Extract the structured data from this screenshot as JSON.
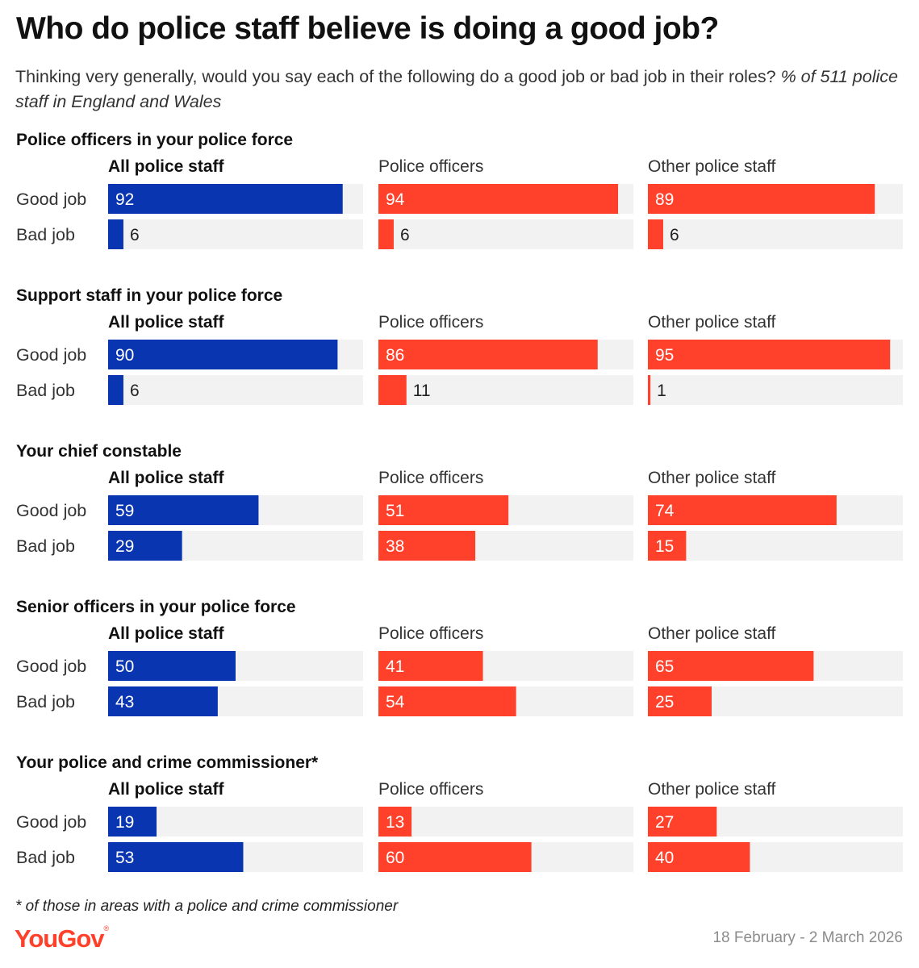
{
  "title": "Who do police staff believe is doing a good job?",
  "subtitle_main": "Thinking very generally, would you say each of the following do a good job or bad job in their roles?",
  "subtitle_italic": " % of 511 police staff in England and Wales",
  "footnote": "* of those in areas with a police and crime commissioner",
  "logo": {
    "text": "YouGov",
    "mark": "®"
  },
  "dates": "18 February - 2 March 2026",
  "colors": {
    "all_staff": "#0a35b0",
    "subgroup": "#ff412c",
    "track": "#f2f2f2"
  },
  "chart_data": {
    "type": "bar",
    "orientation": "horizontal",
    "xlim": [
      0,
      100
    ],
    "unit": "%",
    "columns": [
      "All police staff",
      "Police officers",
      "Other police staff"
    ],
    "rows": [
      "Good job",
      "Bad job"
    ],
    "groups": [
      {
        "name": "Police officers in your police force",
        "values": [
          [
            92,
            6
          ],
          [
            94,
            6
          ],
          [
            89,
            6
          ]
        ]
      },
      {
        "name": "Support staff in your police force",
        "values": [
          [
            90,
            6
          ],
          [
            86,
            11
          ],
          [
            95,
            1
          ]
        ]
      },
      {
        "name": "Your chief constable",
        "values": [
          [
            59,
            29
          ],
          [
            51,
            38
          ],
          [
            74,
            15
          ]
        ]
      },
      {
        "name": "Senior officers in your police force",
        "values": [
          [
            50,
            43
          ],
          [
            41,
            54
          ],
          [
            65,
            25
          ]
        ]
      },
      {
        "name": "Your police and crime commissioner*",
        "values": [
          [
            19,
            53
          ],
          [
            13,
            60
          ],
          [
            27,
            40
          ]
        ]
      }
    ]
  }
}
